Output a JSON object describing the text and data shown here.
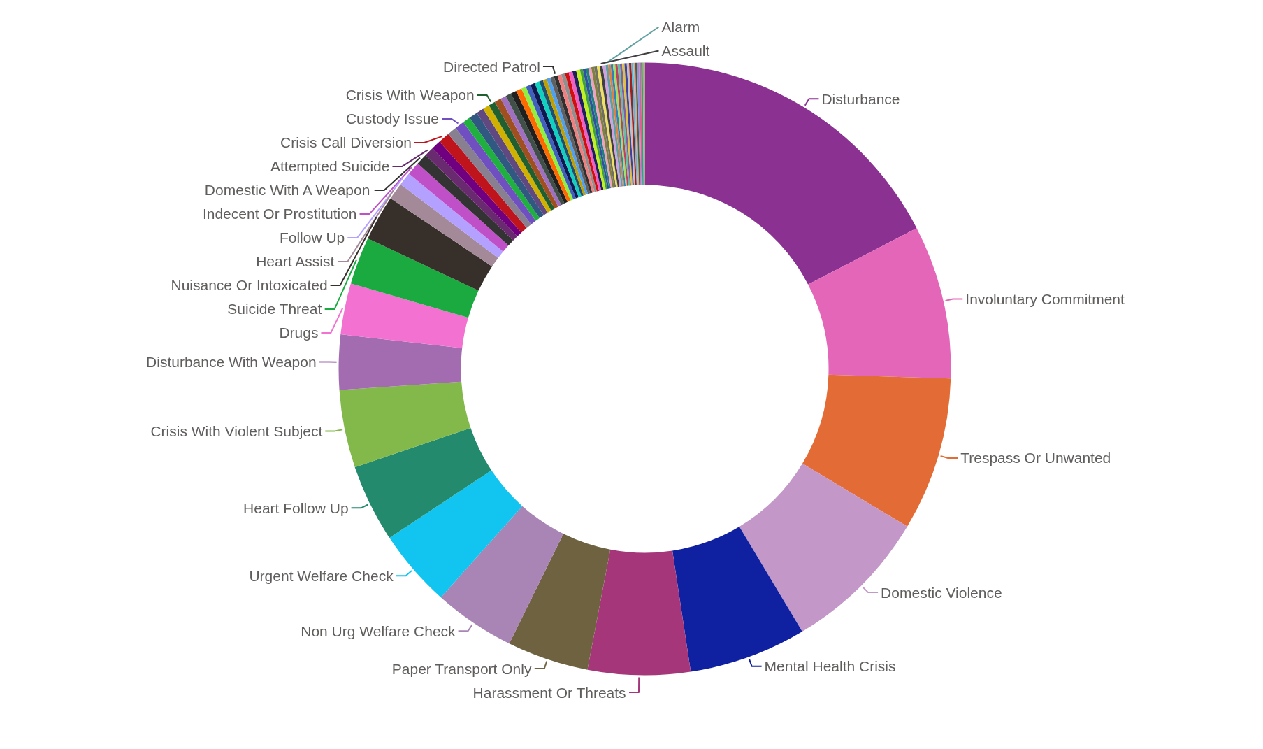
{
  "chart_data": {
    "type": "donut",
    "categories": [
      "Disturbance",
      "Involuntary Commitment",
      "Trespass Or Unwanted",
      "Domestic Violence",
      "Mental Health Crisis",
      "Harassment Or Threats",
      "Paper Transport Only",
      "Non Urg Welfare Check",
      "Urgent Welfare Check",
      "Heart Follow Up",
      "Crisis With Violent Subject",
      "Disturbance With Weapon",
      "Drugs",
      "Suicide Threat",
      "Nuisance Or Intoxicated",
      "Heart Assist",
      "Follow Up",
      "Indecent Or Prostitution",
      "Domestic With A Weapon",
      "Attempted Suicide",
      null,
      "Crisis Call Diversion",
      null,
      "Custody Issue",
      null,
      null,
      null,
      null,
      "Crisis With Weapon",
      null,
      null,
      null,
      null,
      null,
      null,
      null,
      null,
      null,
      null,
      null,
      null,
      null,
      "Directed Patrol",
      null,
      null,
      null,
      null,
      null,
      null,
      null,
      null,
      null,
      null,
      null,
      null,
      null,
      "Assault",
      null,
      "Alarm",
      null,
      null,
      null,
      null,
      null,
      null,
      null,
      null,
      null,
      null,
      null,
      null,
      null,
      null,
      null,
      null,
      null
    ],
    "values": [
      17.4,
      8.1,
      8.1,
      7.8,
      6.2,
      5.4,
      4.3,
      4.3,
      4.1,
      4.1,
      4.1,
      2.9,
      2.7,
      2.5,
      2.4,
      0.9,
      0.7,
      0.7,
      0.6,
      0.5,
      0.5,
      0.6,
      0.5,
      0.5,
      0.4,
      0.45,
      0.4,
      0.35,
      0.35,
      0.35,
      0.3,
      0.3,
      0.3,
      0.3,
      0.25,
      0.25,
      0.25,
      0.25,
      0.2,
      0.2,
      0.2,
      0.2,
      0.2,
      0.2,
      0.2,
      0.2,
      0.2,
      0.2,
      0.2,
      0.15,
      0.15,
      0.15,
      0.15,
      0.15,
      0.15,
      0.15,
      0.15,
      0.15,
      0.15,
      0.12,
      0.12,
      0.12,
      0.12,
      0.12,
      0.12,
      0.12,
      0.12,
      0.12,
      0.12,
      0.1,
      0.1,
      0.1,
      0.1,
      0.1,
      0.1,
      0.1
    ],
    "colors": [
      "#8a3192",
      "#e466b8",
      "#e36c36",
      "#c497c9",
      "#0f21a0",
      "#a53679",
      "#6e6240",
      "#a985b6",
      "#12c5f0",
      "#238a6e",
      "#82b94a",
      "#a36cb0",
      "#f371d0",
      "#1aaa3f",
      "#372f29",
      "#a48a98",
      "#b3a0ff",
      "#c050c8",
      "#333333",
      "#6a2a70",
      "#700080",
      "#c0141c",
      "#888090",
      "#7050c0",
      "#20b040",
      "#305880",
      "#604880",
      "#d0b000",
      "#206030",
      "#a05020",
      "#a070c0",
      "#405048",
      "#202020",
      "#ff6a00",
      "#90f040",
      "#4060c0",
      "#101850",
      "#10d0c0",
      "#205070",
      "#c0a000",
      "#50a0f0",
      "#606060",
      "#303030",
      "#f08080",
      "#909090",
      "#d01010",
      "#f060c0",
      "#202060",
      "#c0f020",
      "#40a040",
      "#3050a0",
      "#208080",
      "#f0a0c0",
      "#808040",
      "#707060",
      "#f0e060",
      "#404040",
      "#d0a0e0",
      "#60a0a0",
      "#e08040",
      "#3080c0",
      "#a0e060",
      "#c04060",
      "#60c0a0",
      "#8060a0",
      "#e0c040",
      "#4040a0",
      "#c0c0c0",
      "#a02020",
      "#40c0e0",
      "#e0a0a0",
      "#506030",
      "#9090e0",
      "#e06090",
      "#30a090",
      "#b0b060"
    ]
  }
}
